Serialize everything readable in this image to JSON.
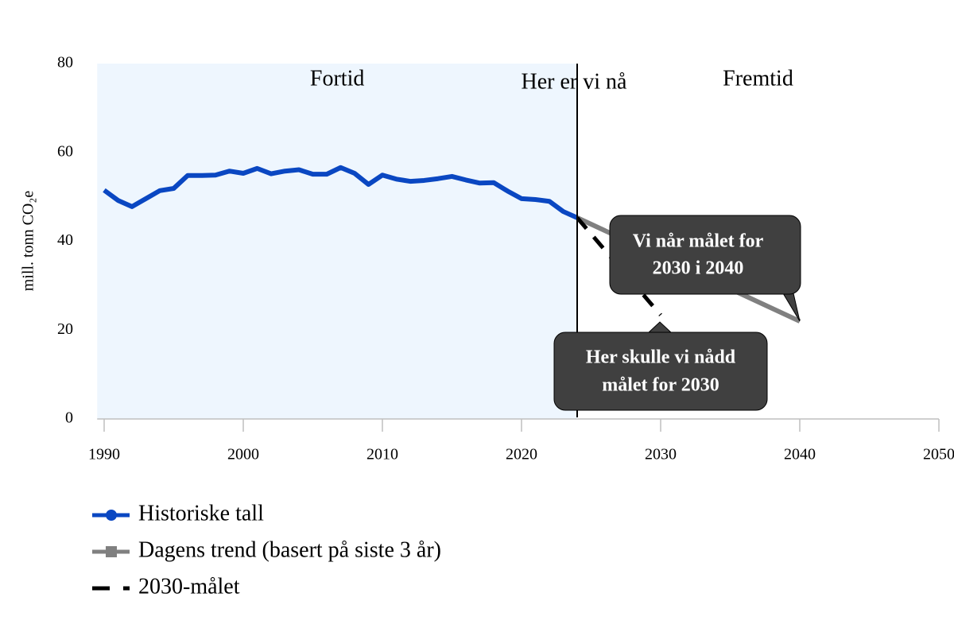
{
  "chart_data": {
    "type": "line",
    "y_label": "mill. tonn CO₂e",
    "xlim": [
      1989.5,
      2050
    ],
    "ylim": [
      0,
      80
    ],
    "xticks": [
      1990,
      2000,
      2010,
      2020,
      2030,
      2040,
      2050
    ],
    "yticks": [
      0,
      20,
      40,
      60,
      80
    ],
    "series": [
      {
        "name": "Historiske tall",
        "color": "#0a47c2",
        "style": "solid",
        "marker": "circle",
        "x": [
          1990,
          1991,
          1992,
          1993,
          1994,
          1995,
          1996,
          1997,
          1998,
          1999,
          2000,
          2001,
          2002,
          2003,
          2004,
          2005,
          2006,
          2007,
          2008,
          2009,
          2010,
          2011,
          2012,
          2013,
          2014,
          2015,
          2016,
          2017,
          2018,
          2019,
          2020,
          2021,
          2022,
          2023,
          2024
        ],
        "values": [
          51.5,
          49.2,
          47.8,
          49.6,
          51.4,
          51.9,
          54.8,
          54.8,
          54.9,
          55.8,
          55.3,
          56.4,
          55.2,
          55.8,
          56.1,
          55.1,
          55.1,
          56.6,
          55.3,
          52.8,
          54.9,
          54.0,
          53.5,
          53.7,
          54.1,
          54.6,
          53.8,
          53.1,
          53.2,
          51.3,
          49.6,
          49.4,
          49.0,
          46.7,
          45.3
        ]
      },
      {
        "name": "Dagens trend (basert på siste 3 år)",
        "color": "#808080",
        "style": "solid",
        "marker": "square",
        "x": [
          2024,
          2040
        ],
        "values": [
          45.3,
          22.0
        ]
      },
      {
        "name": "2030-målet",
        "color": "#000000",
        "style": "dashed",
        "marker": null,
        "x": [
          2024,
          2030
        ],
        "values": [
          45.3,
          23.4
        ]
      }
    ],
    "now": {
      "x": 2024,
      "label": "Her er vi nå"
    },
    "regions": [
      {
        "label": "Fortid",
        "color": "#eef6fe"
      },
      {
        "label": "Fremtid"
      }
    ],
    "annotations": [
      {
        "lines": [
          "Vi når målet for",
          "2030 i 2040"
        ]
      },
      {
        "lines": [
          "Her skulle vi nådd",
          "målet for 2030"
        ]
      }
    ]
  }
}
